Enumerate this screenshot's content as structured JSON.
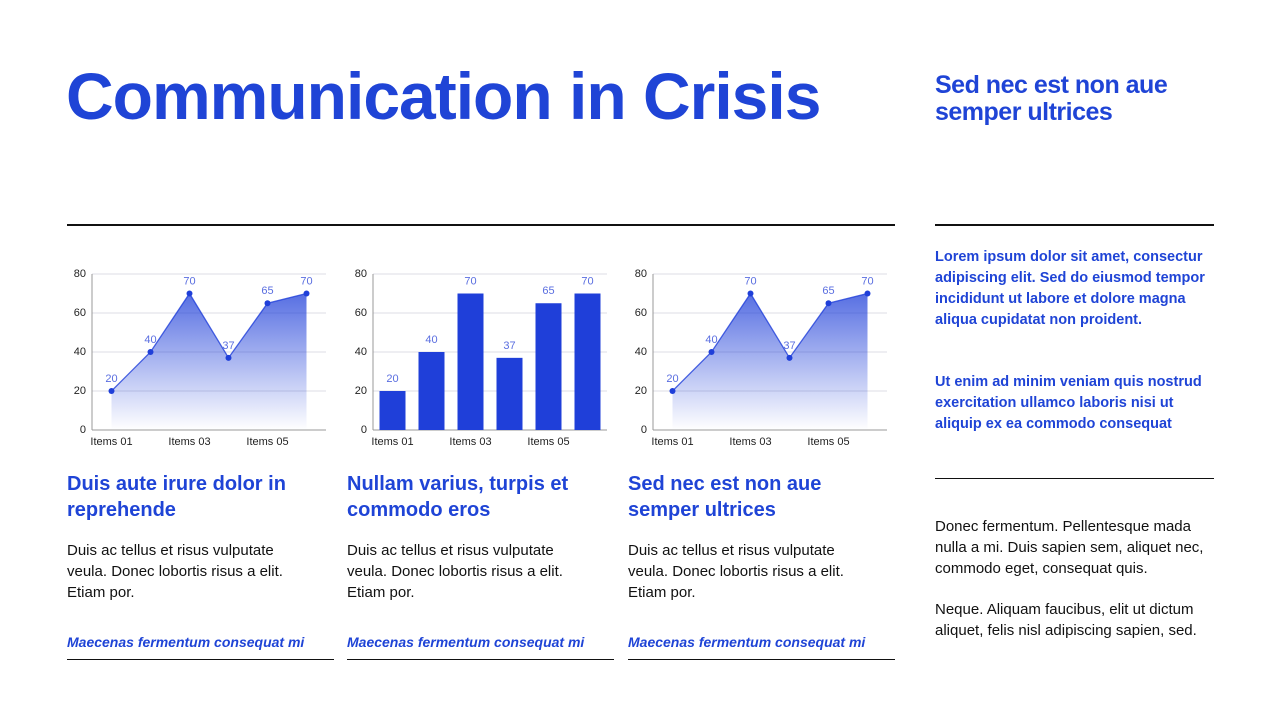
{
  "header": {
    "title": "Communication in Crisis"
  },
  "sidebar": {
    "heading": "Sed nec est non aue semper ultrices",
    "highlights": [
      "Lorem ipsum dolor sit amet, consectur adipiscing elit. Sed do eiusmod tempor incididunt ut labore et dolore magna aliqua cupidatat non proident.",
      "Ut enim ad minim veniam quis nostrud exercitation ullamco laboris nisi ut aliquip ex ea commodo consequat"
    ],
    "notes": [
      "Donec fermentum. Pellentesque mada nulla a mi. Duis sapien sem, aliquet nec, commodo eget, consequat quis.",
      "Neque. Aliquam faucibus, elit ut dictum aliquet, felis nisl adipiscing sapien, sed."
    ]
  },
  "chart_data": [
    {
      "type": "line",
      "area": true,
      "categories": [
        "Items 01",
        null,
        "Items 03",
        null,
        "Items 05",
        null
      ],
      "values": [
        20,
        40,
        70,
        37,
        65,
        70
      ],
      "color": "#1f3fd9",
      "ylim": [
        0,
        80
      ],
      "yticks": [
        0,
        20,
        40,
        60,
        80
      ],
      "grid": true
    },
    {
      "type": "bar",
      "categories": [
        "Items 01",
        null,
        "Items 03",
        null,
        "Items 05",
        null
      ],
      "values": [
        20,
        40,
        70,
        37,
        65,
        70
      ],
      "color": "#1f3fd9",
      "ylim": [
        0,
        80
      ],
      "yticks": [
        0,
        20,
        40,
        60,
        80
      ],
      "grid": true
    },
    {
      "type": "line",
      "area": true,
      "categories": [
        "Items 01",
        null,
        "Items 03",
        null,
        "Items 05",
        null
      ],
      "values": [
        20,
        40,
        70,
        37,
        65,
        70
      ],
      "color": "#1f3fd9",
      "ylim": [
        0,
        80
      ],
      "yticks": [
        0,
        20,
        40,
        60,
        80
      ],
      "grid": true
    }
  ],
  "cards": [
    {
      "title": "Duis aute irure dolor in reprehende",
      "body": "Duis ac tellus et risus vulputate veula. Donec lobortis risus a elit. Etiam por.",
      "link": "Maecenas fermentum consequat mi"
    },
    {
      "title": "Nullam varius, turpis et commodo eros",
      "body": "Duis ac tellus et risus vulputate veula. Donec lobortis risus a elit. Etiam por.",
      "link": "Maecenas fermentum consequat mi"
    },
    {
      "title": "Sed nec est non aue semper ultrices",
      "body": "Duis ac tellus et risus vulputate veula. Donec lobortis risus a elit. Etiam por.",
      "link": "Maecenas fermentum consequat mi"
    }
  ]
}
